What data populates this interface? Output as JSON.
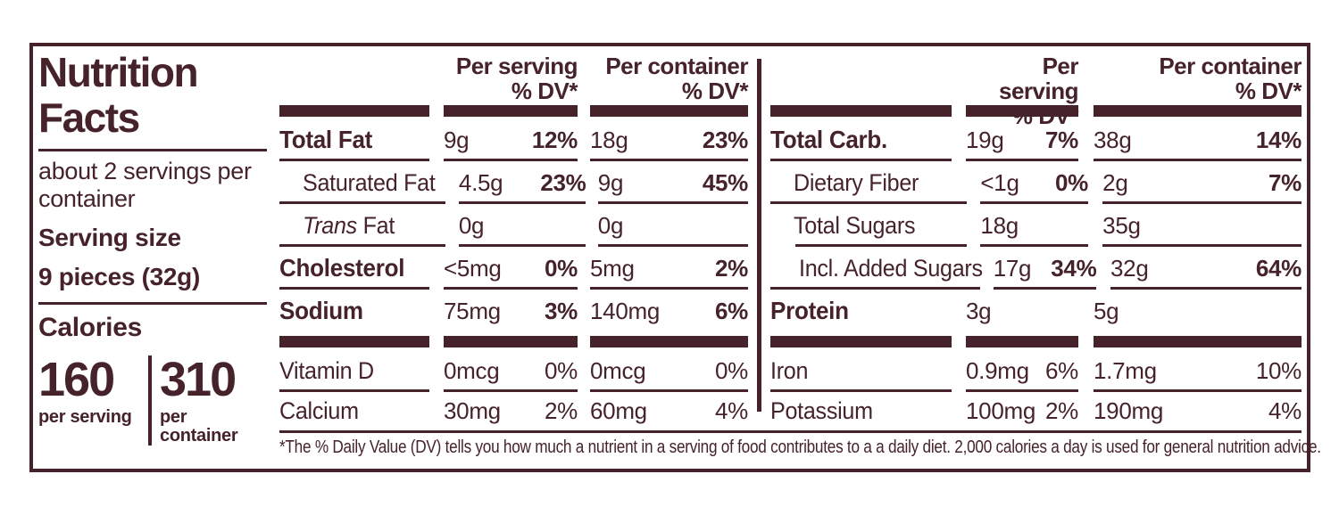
{
  "colors": {
    "ink": "#46232a",
    "background": "#ffffff"
  },
  "title": {
    "line1": "Nutrition",
    "line2": "Facts"
  },
  "serving_info": {
    "servings_line1": "about 2 servings per",
    "servings_line2": "container",
    "size_label": "Serving size",
    "size_value": "9 pieces (32g)"
  },
  "calories": {
    "label": "Calories",
    "per_serving_value": "160",
    "per_serving_caption": "per serving",
    "per_container_value": "310",
    "per_container_caption": "per container"
  },
  "headers": {
    "per_serving": "Per serving",
    "per_container": "Per container",
    "dv": "% DV*"
  },
  "left_table": {
    "rows": [
      {
        "name": "Total Fat",
        "sv_amt": "9g",
        "sv_dv": "12%",
        "pc_amt": "18g",
        "pc_dv": "23%"
      },
      {
        "name": "Saturated Fat",
        "sv_amt": "4.5g",
        "sv_dv": "23%",
        "pc_amt": "9g",
        "pc_dv": "45%"
      },
      {
        "name_italic": "Trans",
        "name_rest": " Fat",
        "sv_amt": "0g",
        "sv_dv": "",
        "pc_amt": "0g",
        "pc_dv": ""
      },
      {
        "name": "Cholesterol",
        "sv_amt": "<5mg",
        "sv_dv": "0%",
        "pc_amt": "5mg",
        "pc_dv": "2%"
      },
      {
        "name": "Sodium",
        "sv_amt": "75mg",
        "sv_dv": "3%",
        "pc_amt": "140mg",
        "pc_dv": "6%"
      },
      {
        "name": "Vitamin D",
        "sv_amt": "0mcg",
        "sv_dv": "0%",
        "pc_amt": "0mcg",
        "pc_dv": "0%"
      },
      {
        "name": "Calcium",
        "sv_amt": "30mg",
        "sv_dv": "2%",
        "pc_amt": "60mg",
        "pc_dv": "4%"
      }
    ]
  },
  "right_table": {
    "rows": [
      {
        "name": "Total Carb.",
        "sv_amt": "19g",
        "sv_dv": "7%",
        "pc_amt": "38g",
        "pc_dv": "14%"
      },
      {
        "name": "Dietary Fiber",
        "sv_amt": "<1g",
        "sv_dv": "0%",
        "pc_amt": "2g",
        "pc_dv": "7%"
      },
      {
        "name": "Total Sugars",
        "sv_amt": "18g",
        "sv_dv": "",
        "pc_amt": "35g",
        "pc_dv": ""
      },
      {
        "name": "Incl. Added Sugars",
        "sv_amt": "17g",
        "sv_dv": "34%",
        "pc_amt": "32g",
        "pc_dv": "64%"
      },
      {
        "name": "Protein",
        "sv_amt": "3g",
        "sv_dv": "",
        "pc_amt": "5g",
        "pc_dv": ""
      },
      {
        "name": "Iron",
        "sv_amt": "0.9mg",
        "sv_dv": "6%",
        "pc_amt": "1.7mg",
        "pc_dv": "10%"
      },
      {
        "name": "Potassium",
        "sv_amt": "100mg",
        "sv_dv": "2%",
        "pc_amt": "190mg",
        "pc_dv": "4%"
      }
    ]
  },
  "footnote": "*The % Daily Value (DV) tells you how much a nutrient in a serving of food contributes to a a daily diet. 2,000 calories a day is used for general nutrition advice."
}
